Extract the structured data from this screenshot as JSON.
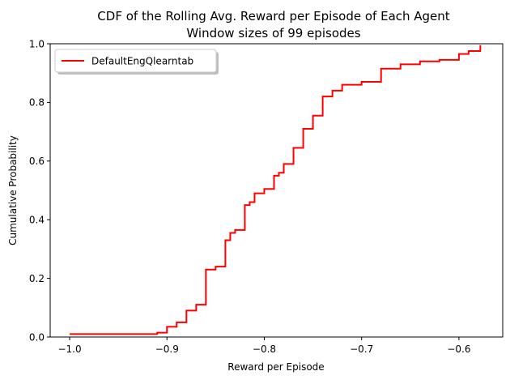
{
  "chart_data": {
    "type": "line",
    "title": "CDF of the Rolling Avg. Reward per Episode of Each Agent",
    "subtitle": "Window sizes of 99 episodes",
    "xlabel": "Reward per Episode",
    "ylabel": "Cumulative Probability",
    "xlim": [
      -1.02,
      -0.555
    ],
    "ylim": [
      0.0,
      1.0
    ],
    "x_ticks": [
      -1.0,
      -0.9,
      -0.8,
      -0.7,
      -0.6
    ],
    "x_tick_labels": [
      "−1.0",
      "−0.9",
      "−0.8",
      "−0.7",
      "−0.6"
    ],
    "y_ticks": [
      0.0,
      0.2,
      0.4,
      0.6,
      0.8,
      1.0
    ],
    "y_tick_labels": [
      "0.0",
      "0.2",
      "0.4",
      "0.6",
      "0.8",
      "1.0"
    ],
    "grid": false,
    "legend_position": "top-left",
    "series": [
      {
        "name": "DefaultEngQlearntab",
        "color": "#ff0000",
        "step": "post",
        "x": [
          -1.0,
          -0.925,
          -0.91,
          -0.9,
          -0.89,
          -0.88,
          -0.87,
          -0.86,
          -0.85,
          -0.84,
          -0.835,
          -0.83,
          -0.82,
          -0.815,
          -0.81,
          -0.8,
          -0.79,
          -0.785,
          -0.78,
          -0.77,
          -0.76,
          -0.75,
          -0.74,
          -0.73,
          -0.72,
          -0.7,
          -0.68,
          -0.66,
          -0.64,
          -0.62,
          -0.6,
          -0.59,
          -0.578
        ],
        "y": [
          0.01,
          0.01,
          0.015,
          0.035,
          0.05,
          0.09,
          0.11,
          0.23,
          0.24,
          0.33,
          0.355,
          0.365,
          0.45,
          0.46,
          0.49,
          0.505,
          0.55,
          0.56,
          0.59,
          0.645,
          0.71,
          0.755,
          0.82,
          0.84,
          0.86,
          0.87,
          0.915,
          0.93,
          0.94,
          0.945,
          0.965,
          0.975,
          0.995
        ]
      }
    ]
  }
}
